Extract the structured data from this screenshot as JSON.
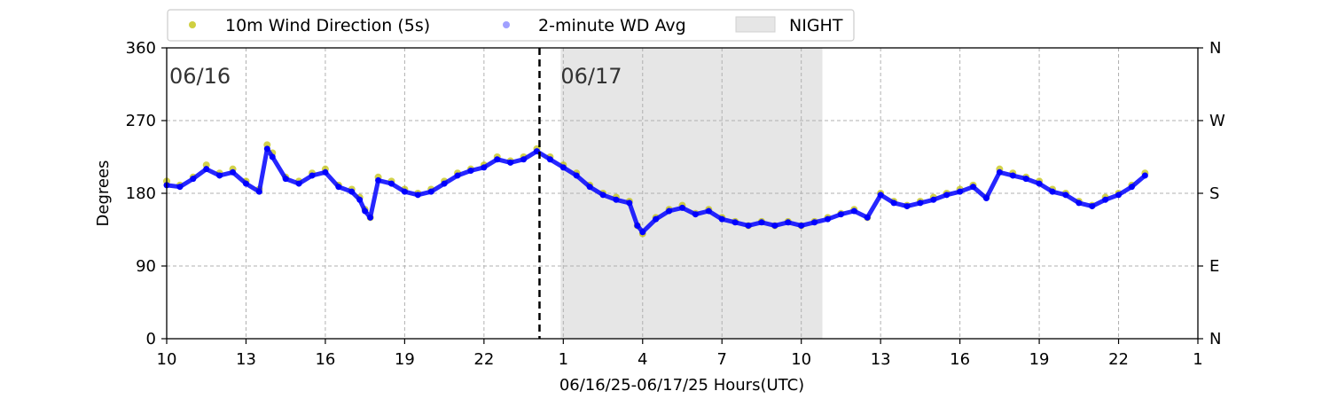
{
  "chart_data": {
    "type": "scatter",
    "title": "",
    "xlabel": "06/16/25-06/17/25  Hours(UTC)",
    "ylabel": "Degrees",
    "x_unit": "hour (UTC)",
    "xlim": [
      10,
      49
    ],
    "ylim": [
      0,
      360
    ],
    "x_ticks": [
      10,
      13,
      16,
      19,
      22,
      25,
      28,
      31,
      34,
      37,
      40,
      43,
      46,
      49
    ],
    "x_tick_labels": [
      "10",
      "13",
      "16",
      "19",
      "22",
      "1",
      "4",
      "7",
      "10",
      "13",
      "16",
      "19",
      "22",
      "1"
    ],
    "y_ticks": [
      0,
      90,
      180,
      270,
      360
    ],
    "y_tick_labels": [
      "0",
      "90",
      "180",
      "270",
      "360"
    ],
    "y2_ticks": [
      0,
      90,
      180,
      270,
      360
    ],
    "y2_tick_labels": [
      "N",
      "E",
      "S",
      "W",
      "N"
    ],
    "grid": true,
    "legend_position": "top",
    "date_labels": [
      {
        "x": 10.1,
        "text": "06/16"
      },
      {
        "x": 24.9,
        "text": "06/17"
      }
    ],
    "midnight_line_x": 24.1,
    "night_span": [
      24.9,
      34.8
    ],
    "series": [
      {
        "name": "10m Wind Direction (5s)",
        "color": "#bfbf00",
        "x": [
          10.0,
          10.5,
          11.0,
          11.5,
          12.0,
          12.5,
          13.0,
          13.5,
          13.8,
          14.0,
          14.5,
          15.0,
          15.5,
          16.0,
          16.5,
          17.0,
          17.3,
          17.5,
          17.7,
          18.0,
          18.5,
          19.0,
          19.5,
          20.0,
          20.5,
          21.0,
          21.5,
          22.0,
          22.5,
          23.0,
          23.5,
          24.0,
          24.5,
          25.0,
          25.5,
          26.0,
          26.5,
          27.0,
          27.5,
          27.8,
          28.0,
          28.5,
          29.0,
          29.5,
          30.0,
          30.5,
          31.0,
          31.5,
          32.0,
          32.5,
          33.0,
          33.5,
          34.0,
          34.5,
          35.0,
          35.5,
          36.0,
          36.5,
          37.0,
          37.5,
          38.0,
          38.5,
          39.0,
          39.5,
          40.0,
          40.5,
          41.0,
          41.5,
          42.0,
          42.5,
          43.0,
          43.5,
          44.0,
          44.5,
          45.0,
          45.5,
          46.0,
          46.5,
          47.0
        ],
        "y": [
          195,
          190,
          200,
          215,
          205,
          210,
          195,
          185,
          240,
          230,
          200,
          195,
          205,
          210,
          190,
          185,
          175,
          160,
          150,
          200,
          195,
          185,
          180,
          185,
          195,
          205,
          210,
          215,
          225,
          220,
          225,
          235,
          225,
          215,
          205,
          190,
          180,
          175,
          170,
          140,
          130,
          150,
          160,
          165,
          155,
          160,
          150,
          145,
          140,
          145,
          140,
          145,
          140,
          145,
          150,
          155,
          160,
          150,
          180,
          170,
          165,
          170,
          175,
          180,
          185,
          190,
          175,
          210,
          205,
          200,
          195,
          185,
          180,
          170,
          165,
          175,
          180,
          190,
          205
        ]
      },
      {
        "name": "2-minute WD Avg",
        "color": "#0000ff",
        "x": [
          10.0,
          10.5,
          11.0,
          11.5,
          12.0,
          12.5,
          13.0,
          13.5,
          13.8,
          14.0,
          14.5,
          15.0,
          15.5,
          16.0,
          16.5,
          17.0,
          17.3,
          17.5,
          17.7,
          18.0,
          18.5,
          19.0,
          19.5,
          20.0,
          20.5,
          21.0,
          21.5,
          22.0,
          22.5,
          23.0,
          23.5,
          24.0,
          24.5,
          25.0,
          25.5,
          26.0,
          26.5,
          27.0,
          27.5,
          27.8,
          28.0,
          28.5,
          29.0,
          29.5,
          30.0,
          30.5,
          31.0,
          31.5,
          32.0,
          32.5,
          33.0,
          33.5,
          34.0,
          34.5,
          35.0,
          35.5,
          36.0,
          36.5,
          37.0,
          37.5,
          38.0,
          38.5,
          39.0,
          39.5,
          40.0,
          40.5,
          41.0,
          41.5,
          42.0,
          42.5,
          43.0,
          43.5,
          44.0,
          44.5,
          45.0,
          45.5,
          46.0,
          46.5,
          47.0
        ],
        "y": [
          190,
          188,
          198,
          210,
          202,
          206,
          192,
          182,
          235,
          225,
          198,
          192,
          202,
          206,
          188,
          182,
          172,
          158,
          150,
          196,
          192,
          182,
          178,
          182,
          192,
          202,
          208,
          212,
          222,
          218,
          222,
          232,
          222,
          212,
          202,
          188,
          178,
          172,
          168,
          140,
          132,
          148,
          158,
          162,
          154,
          158,
          148,
          144,
          140,
          144,
          140,
          144,
          140,
          144,
          148,
          154,
          158,
          150,
          178,
          168,
          164,
          168,
          172,
          178,
          182,
          188,
          174,
          206,
          202,
          198,
          192,
          182,
          178,
          168,
          164,
          172,
          178,
          188,
          202
        ]
      }
    ],
    "legend_entries": [
      {
        "label": "10m Wind Direction (5s)",
        "marker": "dot",
        "color": "#bfbf00"
      },
      {
        "label": "2-minute WD Avg",
        "marker": "dot",
        "color": "#8080ff"
      },
      {
        "label": "NIGHT",
        "marker": "patch",
        "color": "#e6e6e6"
      }
    ]
  }
}
